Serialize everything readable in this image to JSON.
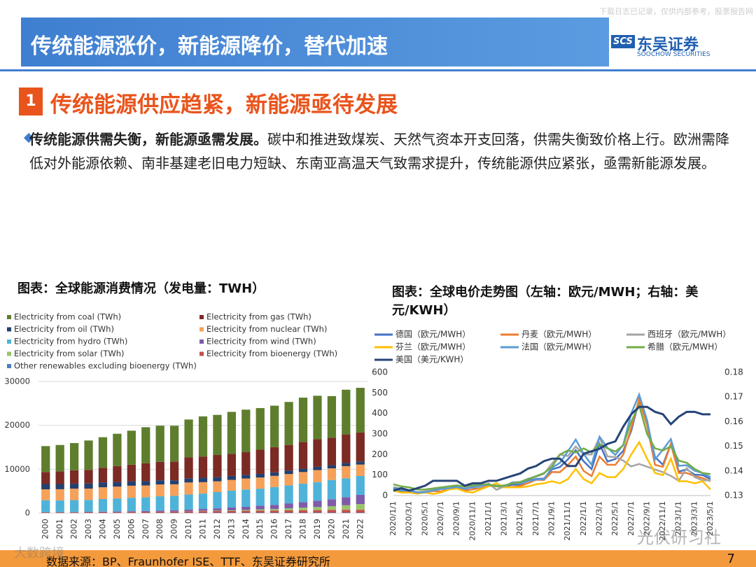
{
  "header": {
    "title": "传统能源涨价，新能源降价，替代加速",
    "logo_mark": "SCS",
    "logo_cn": "东吴证券",
    "logo_en": "SOOCHOW SECURITIES",
    "watermark": "下载日志已记录，仅供内部参考，股票报告网"
  },
  "section": {
    "number": "1",
    "title": "传统能源供应趋紧，新能源亟待发展"
  },
  "bullet": {
    "lead": "传统能源供需失衡，新能源亟需发展。",
    "text": "碳中和推进致煤炭、天然气资本开支回落，供需失衡致价格上行。欧洲需降低对外能源依赖、南非基建老旧电力短缺、东南亚高温天气致需求提升，传统能源供应紧张，亟需新能源发展。"
  },
  "footer": {
    "source": "数据来源：BP、Fraunhofer ISE、TTF、东吴证券研究所",
    "page": "7",
    "watermarks": [
      "大数跨境",
      "光伏研习社"
    ]
  },
  "chart_data": [
    {
      "type": "bar",
      "stacked": true,
      "grid": true,
      "title": "图表：全球能源消费情况（发电量：TWH）",
      "categories": [
        "2000",
        "2001",
        "2002",
        "2003",
        "2004",
        "2005",
        "2006",
        "2007",
        "2008",
        "2009",
        "2010",
        "2011",
        "2012",
        "2013",
        "2014",
        "2015",
        "2016",
        "2017",
        "2018",
        "2019",
        "2020",
        "2021",
        "2022"
      ],
      "ylim": [
        0,
        30000
      ],
      "yticks": [
        0,
        10000,
        20000,
        30000
      ],
      "series": [
        {
          "name": "Electricity from coal (TWh)",
          "color": "#5e7e2e",
          "values": [
            5900,
            6000,
            6200,
            6700,
            6950,
            7350,
            7750,
            8200,
            8250,
            8150,
            8650,
            9150,
            9150,
            9600,
            9700,
            9500,
            9450,
            9800,
            10100,
            9900,
            9500,
            10200,
            10200
          ]
        },
        {
          "name": "Electricity from gas (TWh)",
          "color": "#7b2a24",
          "values": [
            2750,
            2900,
            3050,
            3100,
            3350,
            3650,
            3800,
            4100,
            4200,
            4300,
            4750,
            4850,
            5050,
            5000,
            5150,
            5500,
            5750,
            5850,
            6100,
            6300,
            6250,
            6500,
            6600
          ]
        },
        {
          "name": "Electricity from oil (TWh)",
          "color": "#24406e",
          "values": [
            1200,
            1180,
            1150,
            1170,
            1100,
            1050,
            1000,
            980,
            950,
            900,
            950,
            1000,
            950,
            900,
            850,
            830,
            800,
            780,
            760,
            740,
            720,
            730,
            700
          ]
        },
        {
          "name": "Electricity from nuclear (TWh)",
          "color": "#f5a15a",
          "values": [
            2500,
            2550,
            2600,
            2580,
            2700,
            2700,
            2750,
            2700,
            2700,
            2650,
            2750,
            2600,
            2450,
            2450,
            2500,
            2550,
            2550,
            2590,
            2650,
            2750,
            2650,
            2770,
            2600
          ]
        },
        {
          "name": "Electricity from hydro (TWh)",
          "color": "#4fb3d9",
          "values": [
            2700,
            2650,
            2700,
            2700,
            2850,
            2950,
            3050,
            3100,
            3250,
            3250,
            3450,
            3500,
            3700,
            3850,
            3950,
            3900,
            4050,
            4100,
            4200,
            4250,
            4400,
            4300,
            4300
          ]
        },
        {
          "name": "Electricity from wind (TWh)",
          "color": "#7e5ca8",
          "values": [
            31,
            38,
            52,
            63,
            85,
            104,
            132,
            170,
            220,
            276,
            342,
            437,
            521,
            635,
            706,
            831,
            957,
            1140,
            1270,
            1420,
            1590,
            1850,
            2100
          ]
        },
        {
          "name": "Electricity from solar (TWh)",
          "color": "#9bc46a",
          "values": [
            1,
            2,
            2,
            3,
            3,
            4,
            6,
            8,
            12,
            21,
            32,
            64,
            99,
            139,
            190,
            256,
            329,
            445,
            575,
            700,
            850,
            1030,
            1300
          ]
        },
        {
          "name": "Electricity from bioenergy (TWh)",
          "color": "#c0504d",
          "values": [
            140,
            150,
            160,
            180,
            200,
            220,
            240,
            260,
            280,
            300,
            340,
            380,
            400,
            430,
            460,
            500,
            520,
            550,
            580,
            600,
            620,
            660,
            670
          ]
        },
        {
          "name": "Other renewables excluding bioenergy (TWh)",
          "color": "#4a7fc1",
          "values": [
            52,
            53,
            54,
            56,
            57,
            58,
            60,
            62,
            63,
            64,
            67,
            68,
            70,
            71,
            74,
            78,
            82,
            84,
            86,
            89,
            91,
            92,
            90
          ]
        }
      ]
    },
    {
      "type": "line",
      "grid": false,
      "title": "图表：全球电价走势图（左轴：欧元/MWH；右轴：美元/KWH）",
      "categories": [
        "2020/1/1",
        null,
        "2020/3/1",
        null,
        "2020/5/1",
        null,
        "2020/7/1",
        null,
        "2020/9/1",
        null,
        "2020/11/1",
        null,
        "2021/1/1",
        null,
        "2021/3/1",
        null,
        "2021/5/1",
        null,
        "2021/7/1",
        null,
        "2021/9/1",
        null,
        "2021/11/1",
        null,
        "2022/1/1",
        null,
        "2022/3/1",
        null,
        "2022/5/1",
        null,
        "2022/7/1",
        null,
        "2022/9/1",
        null,
        "2022/11/1",
        null,
        "2023/1/1",
        null,
        "2023/3/1",
        null,
        "2023/5/1"
      ],
      "ylim": [
        0,
        600
      ],
      "yticks": [
        0,
        100,
        200,
        300,
        400,
        500,
        600
      ],
      "y2lim": [
        0.13,
        0.18
      ],
      "y2ticks": [
        0.13,
        0.14,
        0.15,
        0.16,
        0.17,
        0.18
      ],
      "series": [
        {
          "name": "德国（欧元/MWH）",
          "color": "#4472c4",
          "values": [
            35,
            22,
            23,
            17,
            18,
            26,
            33,
            34,
            45,
            39,
            39,
            43,
            53,
            48,
            47,
            53,
            54,
            74,
            81,
            83,
            128,
            139,
            176,
            221,
            167,
            129,
            252,
            166,
            178,
            218,
            315,
            465,
            350,
            188,
            150,
            252,
            117,
            128,
            102,
            100,
            80
          ]
        },
        {
          "name": "丹麦（欧元/MWH）",
          "color": "#ed7d31",
          "values": [
            25,
            15,
            17,
            10,
            17,
            22,
            20,
            33,
            40,
            25,
            30,
            38,
            47,
            45,
            40,
            42,
            47,
            61,
            77,
            76,
            115,
            114,
            148,
            190,
            120,
            95,
            190,
            150,
            150,
            200,
            330,
            470,
            340,
            150,
            140,
            250,
            110,
            110,
            95,
            85,
            70
          ]
        },
        {
          "name": "西班牙（欧元/MWH）",
          "color": "#a5a5a5",
          "values": [
            41,
            35,
            28,
            17,
            21,
            30,
            34,
            36,
            42,
            37,
            42,
            41,
            60,
            28,
            45,
            65,
            67,
            83,
            92,
            106,
            156,
            200,
            193,
            239,
            201,
            200,
            283,
            191,
            187,
            170,
            142,
            154,
            141,
            127,
            114,
            96,
            72,
            134,
            90,
            74,
            74
          ]
        },
        {
          "name": "芬兰（欧元/MWH）",
          "color": "#ffc000",
          "values": [
            25,
            15,
            15,
            10,
            15,
            8,
            15,
            30,
            35,
            20,
            15,
            30,
            45,
            60,
            40,
            40,
            40,
            45,
            55,
            60,
            70,
            60,
            80,
            130,
            80,
            60,
            110,
            90,
            90,
            130,
            200,
            260,
            180,
            110,
            100,
            180,
            70,
            70,
            60,
            70,
            30
          ]
        },
        {
          "name": "法国（欧元/MWH）",
          "color": "#5b9bd5",
          "values": [
            38,
            27,
            23,
            15,
            16,
            25,
            32,
            36,
            42,
            33,
            41,
            48,
            53,
            46,
            46,
            63,
            58,
            71,
            78,
            80,
            136,
            159,
            215,
            273,
            203,
            150,
            287,
            233,
            198,
            248,
            400,
            492,
            367,
            176,
            224,
            275,
            145,
            148,
            121,
            110,
            90
          ]
        },
        {
          "name": "希腊（欧元/MWH）",
          "color": "#70ad47",
          "values": [
            55,
            45,
            40,
            30,
            30,
            35,
            40,
            45,
            50,
            45,
            50,
            55,
            55,
            45,
            50,
            60,
            65,
            80,
            95,
            110,
            140,
            200,
            220,
            210,
            230,
            210,
            250,
            230,
            215,
            245,
            360,
            440,
            300,
            230,
            220,
            240,
            170,
            160,
            130,
            110,
            105
          ]
        },
        {
          "name": "美国（美元/KWH）",
          "color": "#264478",
          "axis": "y2",
          "values": [
            0.132,
            0.133,
            0.132,
            0.133,
            0.134,
            0.136,
            0.136,
            0.136,
            0.136,
            0.134,
            0.135,
            0.135,
            0.136,
            0.136,
            0.137,
            0.138,
            0.139,
            0.141,
            0.142,
            0.144,
            0.145,
            0.145,
            0.142,
            0.142,
            0.147,
            0.148,
            0.149,
            0.151,
            0.152,
            0.158,
            0.163,
            0.166,
            0.166,
            0.164,
            0.163,
            0.159,
            0.162,
            0.164,
            0.164,
            0.163,
            0.163
          ]
        }
      ]
    }
  ]
}
